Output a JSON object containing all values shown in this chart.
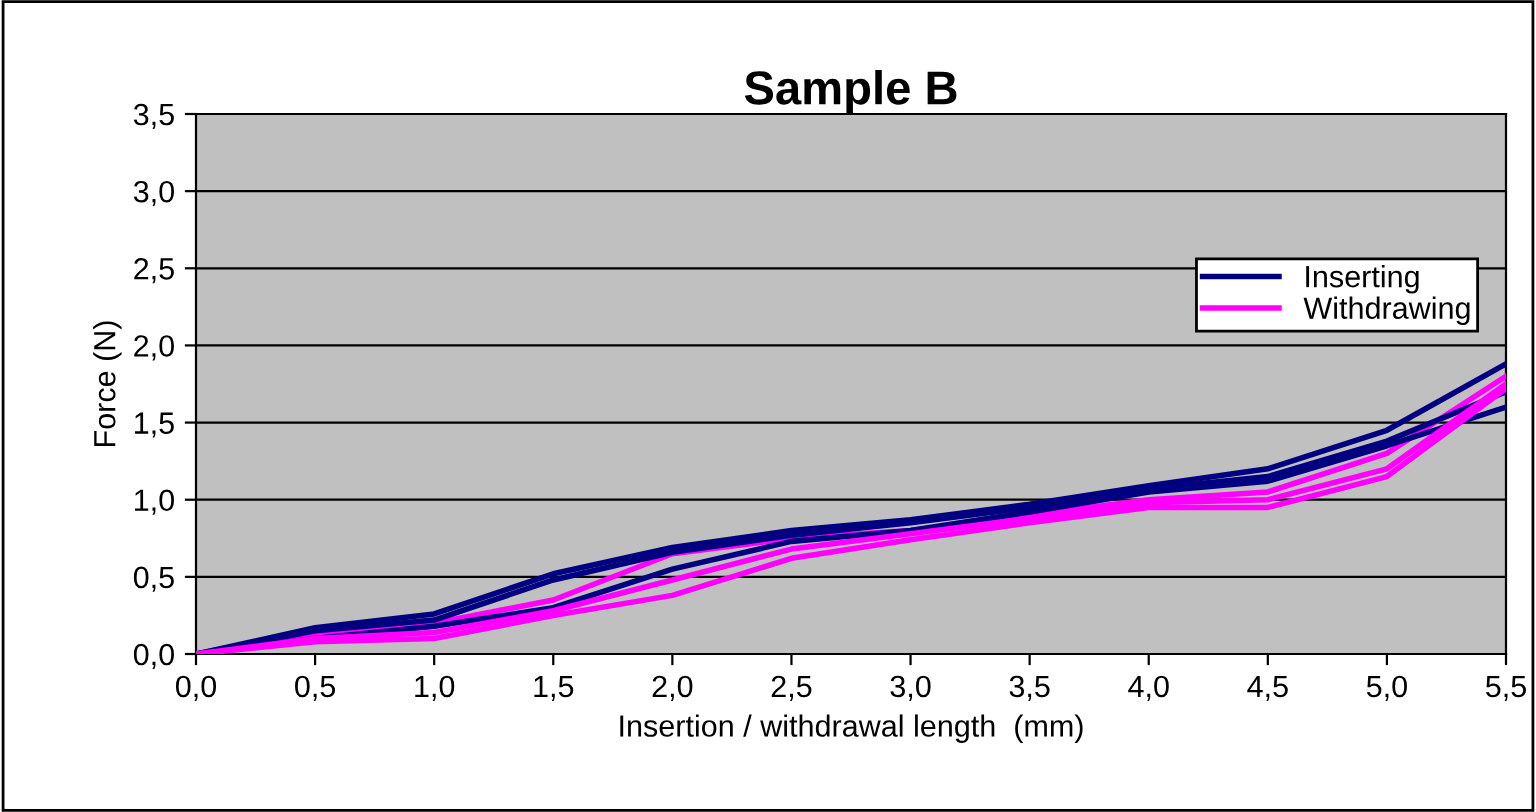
{
  "chart_data": {
    "type": "line",
    "title": "Sample B",
    "xlabel": "Insertion / withdrawal length  (mm)",
    "ylabel": "Force (N)",
    "x": [
      0,
      0.5,
      1,
      1.5,
      2,
      2.5,
      3,
      3.5,
      4,
      4.5,
      5,
      5.5
    ],
    "series": [
      {
        "name": "Inserting",
        "color": "#000080",
        "values": [
          0,
          0.17,
          0.26,
          0.52,
          0.69,
          0.8,
          0.87,
          0.97,
          1.09,
          1.2,
          1.45,
          1.88
        ]
      },
      {
        "name": "Withdrawing",
        "color": "#ff00ff",
        "values": [
          0,
          0.12,
          0.2,
          0.35,
          0.65,
          0.75,
          0.8,
          0.9,
          1.0,
          1.05,
          1.3,
          1.8
        ]
      },
      {
        "color": "#000080",
        "values": [
          0,
          0.15,
          0.22,
          0.48,
          0.66,
          0.77,
          0.85,
          0.95,
          1.07,
          1.15,
          1.38,
          1.7
        ]
      },
      {
        "color": "#000080",
        "values": [
          0,
          0.1,
          0.18,
          0.3,
          0.55,
          0.73,
          0.8,
          0.92,
          1.05,
          1.12,
          1.35,
          1.6
        ]
      },
      {
        "color": "#ff00ff",
        "values": [
          0,
          0.1,
          0.14,
          0.28,
          0.48,
          0.68,
          0.78,
          0.88,
          0.98,
          1.0,
          1.2,
          1.75
        ]
      },
      {
        "color": "#ff00ff",
        "values": [
          0,
          0.08,
          0.1,
          0.25,
          0.38,
          0.62,
          0.74,
          0.85,
          0.95,
          0.95,
          1.15,
          1.72
        ]
      }
    ],
    "xlim": [
      0,
      5.5
    ],
    "ylim": [
      0,
      3.5
    ],
    "xticks": [
      {
        "value": 0,
        "label": "0,0"
      },
      {
        "value": 0.5,
        "label": "0,5"
      },
      {
        "value": 1,
        "label": "1,0"
      },
      {
        "value": 1.5,
        "label": "1,5"
      },
      {
        "value": 2,
        "label": "2,0"
      },
      {
        "value": 2.5,
        "label": "2,5"
      },
      {
        "value": 3,
        "label": "3,0"
      },
      {
        "value": 3.5,
        "label": "3,5"
      },
      {
        "value": 4,
        "label": "4,0"
      },
      {
        "value": 4.5,
        "label": "4,5"
      },
      {
        "value": 5,
        "label": "5,0"
      },
      {
        "value": 5.5,
        "label": "5,5"
      }
    ],
    "yticks": [
      {
        "value": 0,
        "label": "0,0"
      },
      {
        "value": 0.5,
        "label": "0,5"
      },
      {
        "value": 1,
        "label": "1,0"
      },
      {
        "value": 1.5,
        "label": "1,5"
      },
      {
        "value": 2,
        "label": "2,0"
      },
      {
        "value": 2.5,
        "label": "2,5"
      },
      {
        "value": 3,
        "label": "3,0"
      },
      {
        "value": 3.5,
        "label": "3,5"
      }
    ],
    "grid": "y",
    "legend": "top right",
    "marker": "none",
    "line_style": "solid"
  }
}
